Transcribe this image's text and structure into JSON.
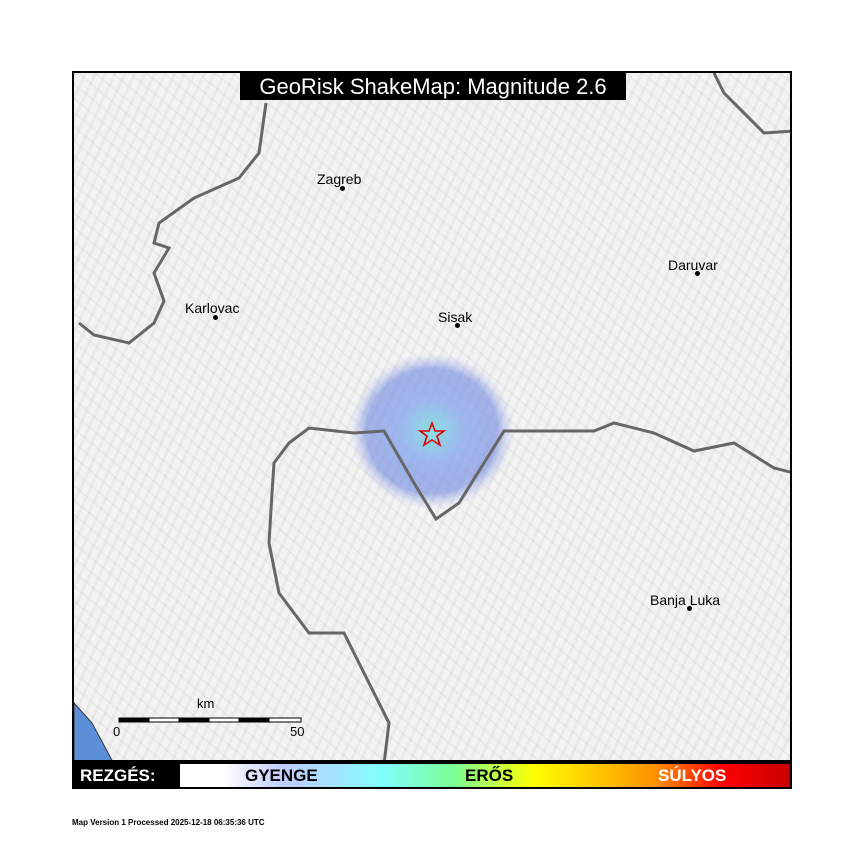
{
  "title": "GeoRisk ShakeMap: Magnitude 2.6",
  "cities": [
    {
      "name": "Zagreb"
    },
    {
      "name": "Karlovac"
    },
    {
      "name": "Sisak"
    },
    {
      "name": "Daruvar"
    },
    {
      "name": "Banja Luka"
    }
  ],
  "epicenter_icon": "star-icon",
  "scale": {
    "unit": "km",
    "start": "0",
    "end": "50"
  },
  "legend": {
    "label": "REZGÉS:",
    "levels": [
      "GYENGE",
      "ERŐS",
      "SÚLYOS"
    ],
    "colors": {
      "weak": "#bfccff",
      "strong": "#ffff00",
      "severe": "#c80000"
    }
  },
  "footer": "Map Version 1 Processed 2025-12-18 06:35:36 UTC"
}
